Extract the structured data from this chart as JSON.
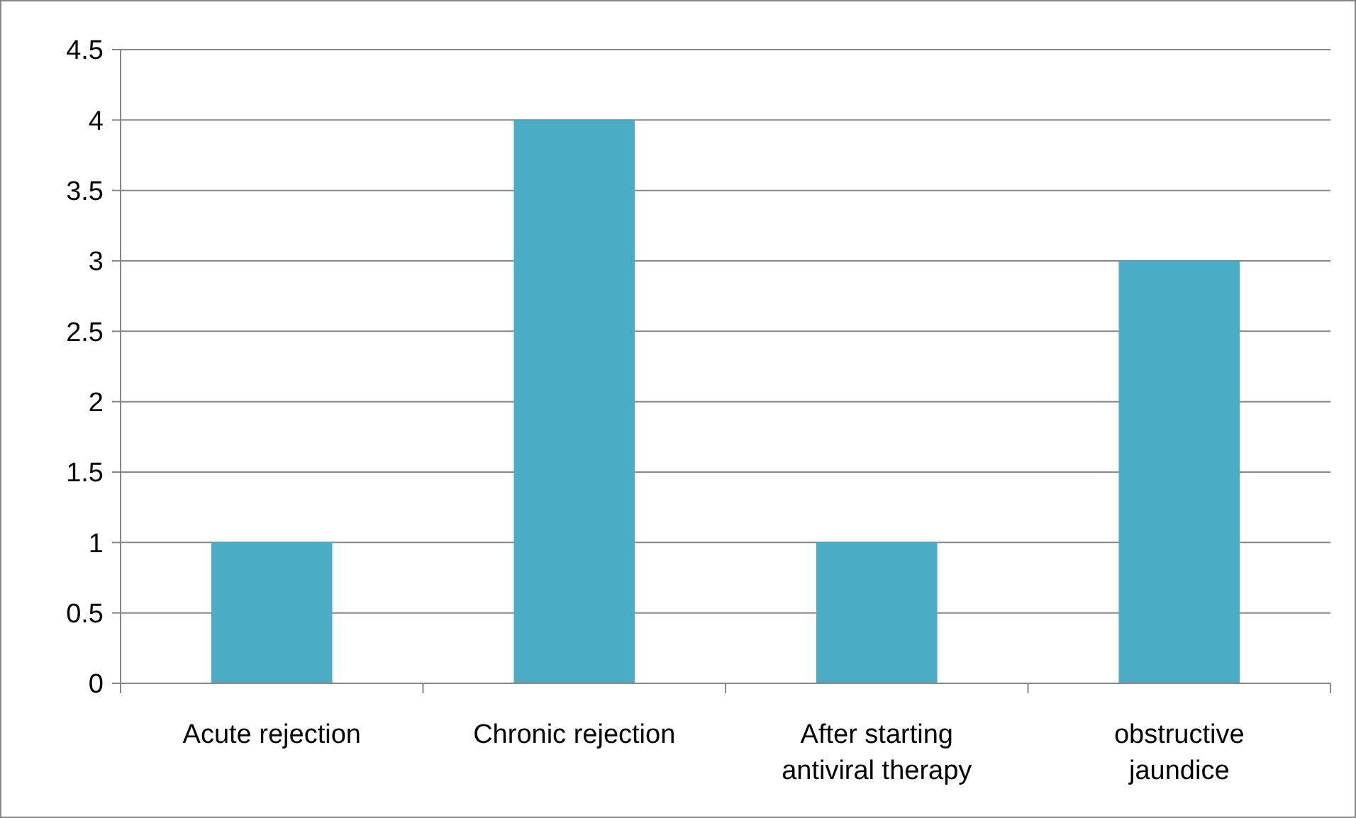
{
  "chart_data": {
    "type": "bar",
    "categories": [
      "Acute rejection",
      "Chronic rejection",
      "After starting antiviral therapy",
      "obstructive jaundice"
    ],
    "values": [
      1,
      4,
      1,
      3
    ],
    "color": "#4bacc6",
    "ylim": [
      0,
      4.5
    ],
    "yticks": [
      0,
      0.5,
      1,
      1.5,
      2,
      2.5,
      3,
      3.5,
      4,
      4.5
    ],
    "grid": "y"
  }
}
